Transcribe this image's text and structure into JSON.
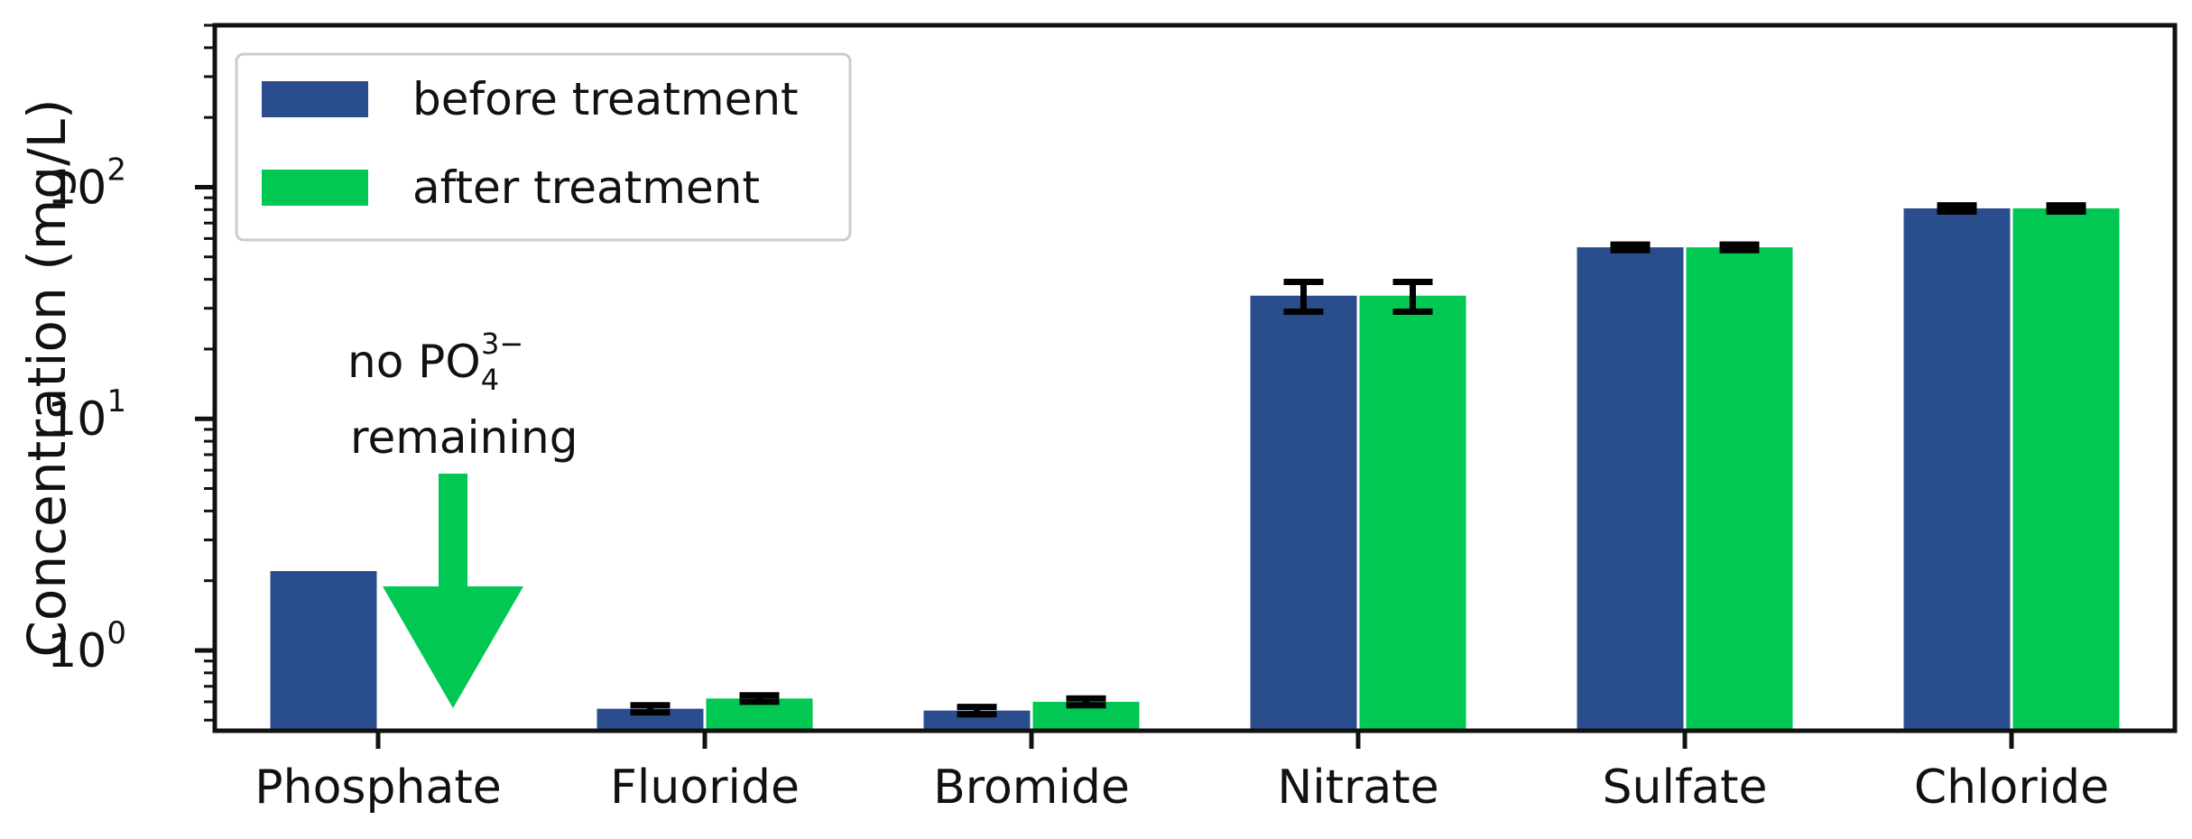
{
  "chart_data": {
    "type": "bar",
    "ylabel": "Concentration (mg/L)",
    "yscale": "log",
    "ylim": [
      0.45,
      500
    ],
    "yticks": [
      {
        "value": 1,
        "base": "10",
        "exp": "0"
      },
      {
        "value": 10,
        "base": "10",
        "exp": "1"
      },
      {
        "value": 100,
        "base": "10",
        "exp": "2"
      }
    ],
    "categories": [
      "Phosphate",
      "Fluoride",
      "Bromide",
      "Nitrate",
      "Sulfate",
      "Chloride"
    ],
    "series": [
      {
        "name": "before treatment",
        "color": "#2a4d8d",
        "values": [
          2.2,
          0.56,
          0.55,
          34,
          55,
          81
        ],
        "errors": [
          null,
          0.02,
          0.02,
          5,
          1.5,
          2.5
        ]
      },
      {
        "name": "after treatment",
        "color": "#00c853",
        "values": [
          null,
          0.62,
          0.6,
          34,
          55,
          81
        ],
        "errors": [
          null,
          0.02,
          0.02,
          5,
          1.5,
          2.5
        ]
      }
    ],
    "legend": {
      "position": "top-left"
    },
    "annotation": {
      "line1_prefix": "no PO",
      "sub": "4",
      "sup": "3−",
      "line2": "remaining",
      "arrow_color": "#00c853"
    },
    "grid": false
  }
}
